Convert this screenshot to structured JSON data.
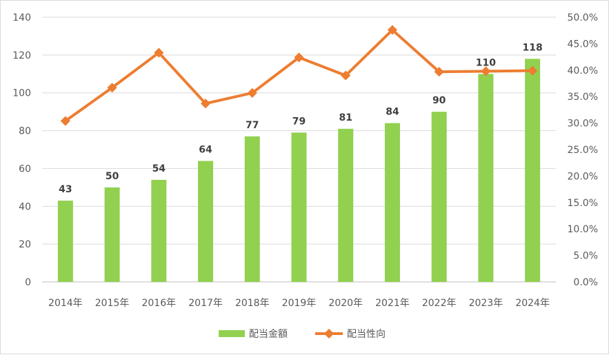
{
  "chart_data": {
    "type": "bar",
    "categories": [
      "2014年",
      "2015年",
      "2016年",
      "2017年",
      "2018年",
      "2019年",
      "2020年",
      "2021年",
      "2022年",
      "2023年",
      "2024年"
    ],
    "series": [
      {
        "name": "配当金額",
        "type": "bar",
        "axis": "left",
        "color": "#92d050",
        "values": [
          43,
          50,
          54,
          64,
          77,
          79,
          81,
          84,
          90,
          110,
          118
        ],
        "data_labels": [
          "43",
          "50",
          "54",
          "64",
          "77",
          "79",
          "81",
          "84",
          "90",
          "110",
          "118"
        ]
      },
      {
        "name": "配当性向",
        "type": "line",
        "axis": "right",
        "color": "#ed7d31",
        "marker": "diamond",
        "values": [
          30.4,
          36.7,
          43.3,
          33.7,
          35.7,
          42.4,
          39.0,
          47.6,
          39.7,
          39.8,
          39.9
        ]
      }
    ],
    "y_left": {
      "min": 0,
      "max": 140,
      "step": 20,
      "ticks": [
        "0",
        "20",
        "40",
        "60",
        "80",
        "100",
        "120",
        "140"
      ]
    },
    "y_right": {
      "min": 0,
      "max": 50,
      "step": 5,
      "ticks": [
        "0.0%",
        "5.0%",
        "10.0%",
        "15.0%",
        "20.0%",
        "25.0%",
        "30.0%",
        "35.0%",
        "40.0%",
        "45.0%",
        "50.0%"
      ]
    },
    "grid": true,
    "legend": {
      "position": "bottom",
      "items": [
        "配当金額",
        "配当性向"
      ]
    },
    "title": "",
    "xlabel": "",
    "ylabel": ""
  }
}
